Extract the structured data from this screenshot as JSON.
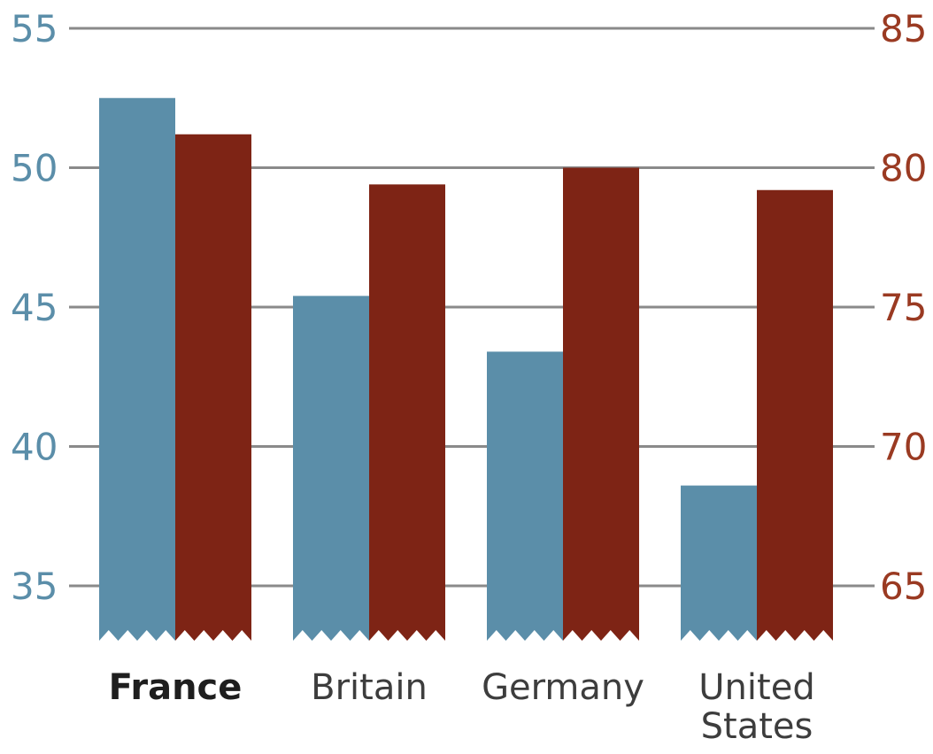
{
  "chart_data": {
    "type": "bar",
    "categories": [
      "France",
      "Britain",
      "Germany",
      "United States"
    ],
    "highlight_category": "France",
    "series": [
      {
        "axis": "left",
        "color": "#5b8ea9",
        "values": [
          52.5,
          45.4,
          43.4,
          38.6
        ]
      },
      {
        "axis": "right",
        "color": "#7e2415",
        "values": [
          81.2,
          79.4,
          80.0,
          79.2
        ]
      }
    ],
    "y_left": {
      "min": 35,
      "max": 55,
      "ticks": [
        "55",
        "50",
        "45",
        "40",
        "35"
      ],
      "color": "#5b8ea9"
    },
    "y_right": {
      "min": 65,
      "max": 85,
      "ticks": [
        "85",
        "80",
        "75",
        "70",
        "65"
      ],
      "color": "#9a3a22"
    },
    "axis_break": "zigzag at bar bottoms",
    "grid": true,
    "grid_color": "#8a8a8a"
  }
}
